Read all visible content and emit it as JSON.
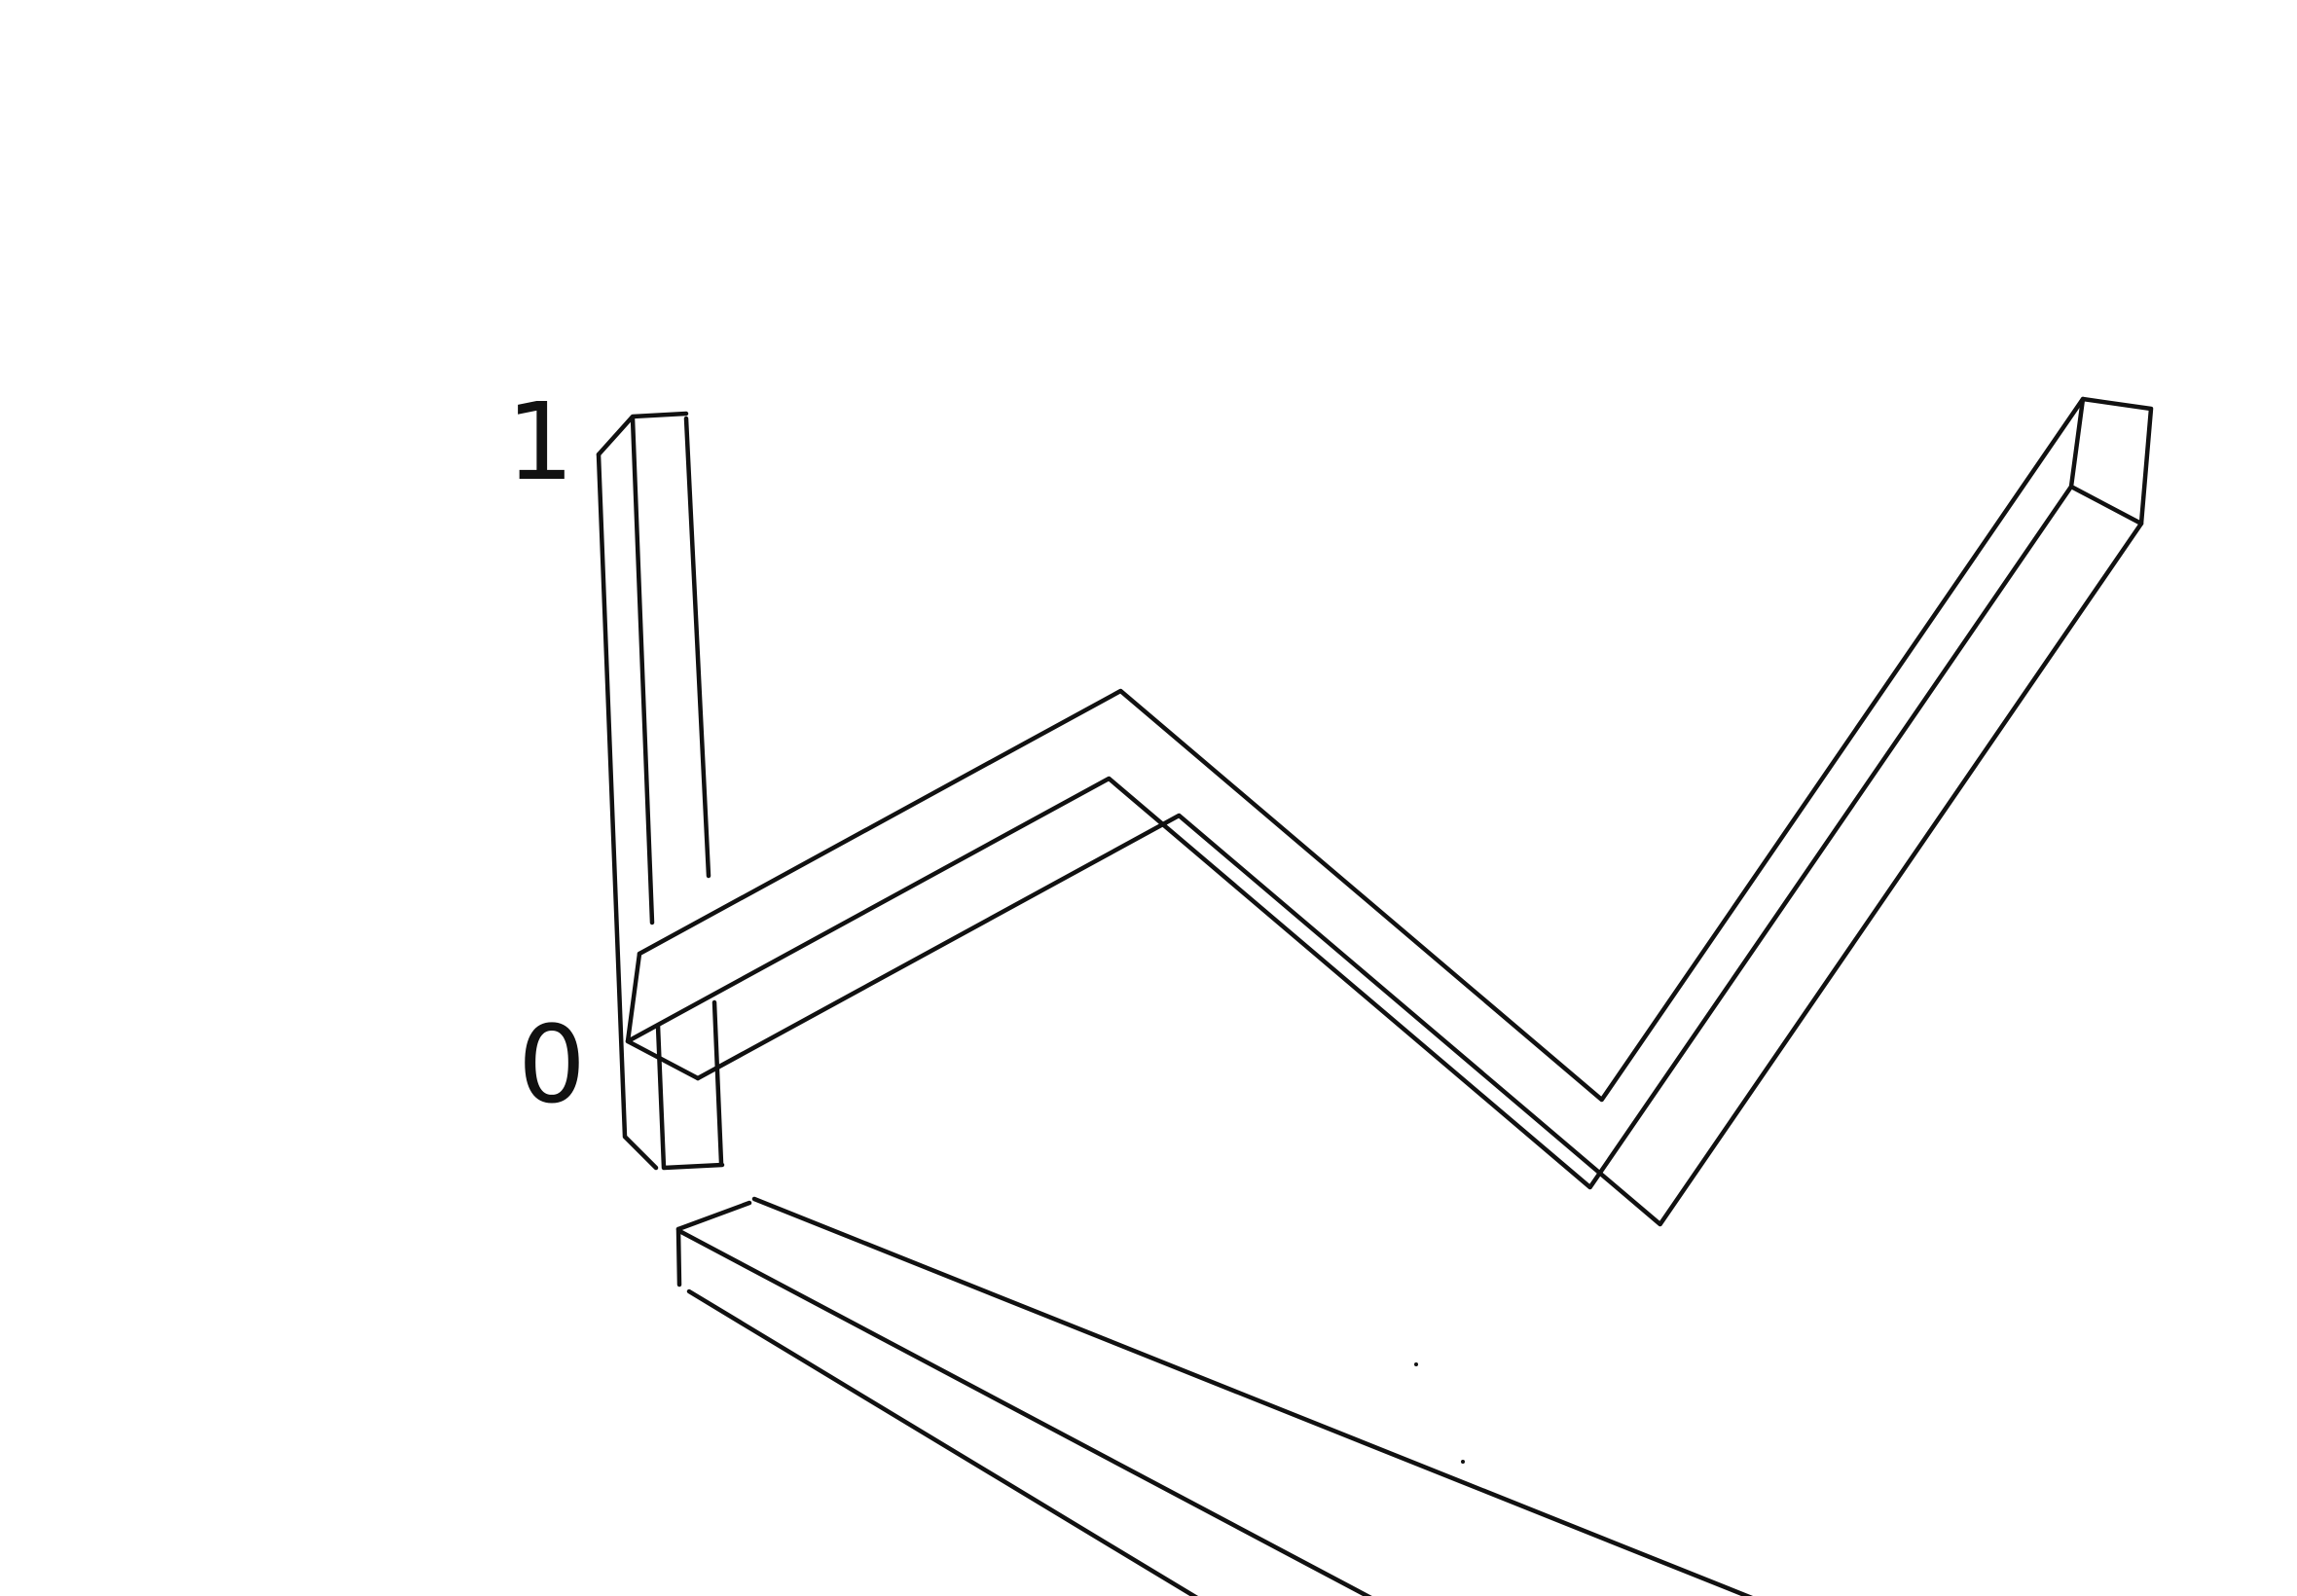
{
  "chart_data": {
    "type": "line",
    "style": "hand-drawn 3D ribbon sketch",
    "x": [
      0,
      1,
      2,
      3
    ],
    "series": [
      {
        "values": [
          0.1,
          0.55,
          -0.15,
          1.05
        ]
      }
    ],
    "y_ticks": [
      {
        "value": 1,
        "label": "1"
      },
      {
        "value": 0,
        "label": "0"
      }
    ],
    "ylim": [
      0,
      1
    ],
    "grid": false,
    "legend": "none",
    "colors": {
      "ink": "#111111",
      "background": "#ffffff"
    }
  }
}
